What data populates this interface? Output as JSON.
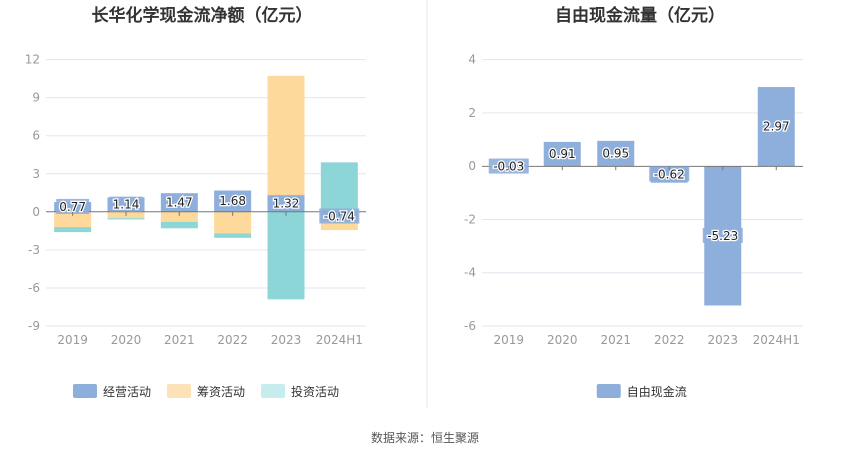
{
  "source": "数据来源：恒生聚源",
  "chart_data": [
    {
      "type": "bar",
      "stacked": true,
      "title": "长华化学现金流净额（亿元）",
      "categories": [
        "2019",
        "2020",
        "2021",
        "2022",
        "2023",
        "2024H1"
      ],
      "yticks": [
        "12",
        "9",
        "6",
        "3",
        "0",
        "-3",
        "-6",
        "-9"
      ],
      "ylim": [
        -9,
        12
      ],
      "grid": true,
      "legend_position": "bottom",
      "series": [
        {
          "name": "经营活动",
          "color": "#8eaedb",
          "values": [
            0.77,
            1.14,
            1.47,
            1.68,
            1.32,
            -0.74
          ],
          "labels": [
            "0.77",
            "1.14",
            "1.47",
            "1.68",
            "1.32",
            "-0.74"
          ]
        },
        {
          "name": "筹资活动",
          "color": "#fdd99c",
          "values": [
            -1.2,
            -0.5,
            -0.8,
            -1.7,
            9.4,
            -0.7
          ]
        },
        {
          "name": "投资活动",
          "color": "#8cd6d8",
          "values": [
            -0.4,
            -0.1,
            -0.5,
            -0.35,
            -6.9,
            3.9
          ]
        }
      ],
      "legend": [
        {
          "name": "经营活动",
          "color": "#8eaedb"
        },
        {
          "name": "筹资活动",
          "color": "#fde2b7"
        },
        {
          "name": "投资活动",
          "color": "#c6ecee"
        }
      ]
    },
    {
      "type": "bar",
      "title": "自由现金流量（亿元）",
      "categories": [
        "2019",
        "2020",
        "2021",
        "2022",
        "2023",
        "2024H1"
      ],
      "yticks": [
        "4",
        "2",
        "0",
        "-2",
        "-4",
        "-6"
      ],
      "ylim": [
        -6,
        4
      ],
      "grid": true,
      "legend_position": "bottom",
      "series": [
        {
          "name": "自由现金流",
          "color": "#8eaedb",
          "values": [
            -0.03,
            0.91,
            0.95,
            -0.62,
            -5.23,
            2.97
          ],
          "labels": [
            "-0.03",
            "0.91",
            "0.95",
            "-0.62",
            "-5.23",
            "2.97"
          ]
        }
      ],
      "legend": [
        {
          "name": "自由现金流",
          "color": "#8eaedb"
        }
      ]
    }
  ]
}
